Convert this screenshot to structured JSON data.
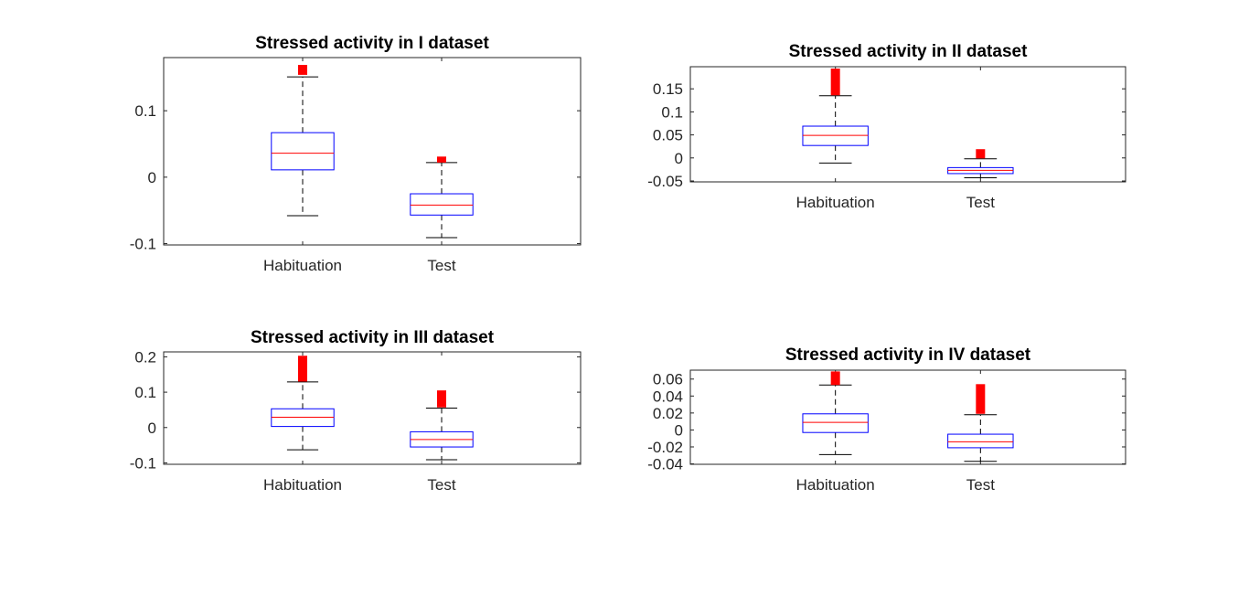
{
  "chart_data": [
    {
      "type": "box",
      "title": "Stressed activity in I dataset",
      "categories": [
        "Habituation",
        "Test"
      ],
      "ylim": [
        -0.102,
        0.18
      ],
      "yticks": [
        {
          "v": -0.1,
          "label": "-0.1"
        },
        {
          "v": 0,
          "label": "0"
        },
        {
          "v": 0.1,
          "label": "0.1"
        }
      ],
      "boxes": [
        {
          "whisker_low": -0.058,
          "q1": 0.011,
          "median": 0.036,
          "q3": 0.067,
          "whisker_high": 0.151,
          "outlier_range": [
            0.154,
            0.169
          ]
        },
        {
          "whisker_low": -0.091,
          "q1": -0.057,
          "median": -0.042,
          "q3": -0.025,
          "whisker_high": 0.022,
          "outlier_range": [
            0.022,
            0.031
          ]
        }
      ]
    },
    {
      "type": "box",
      "title": "Stressed activity in II dataset",
      "categories": [
        "Habituation",
        "Test"
      ],
      "ylim": [
        -0.052,
        0.198
      ],
      "yticks": [
        {
          "v": -0.05,
          "label": "-0.05"
        },
        {
          "v": 0,
          "label": "0"
        },
        {
          "v": 0.05,
          "label": "0.05"
        },
        {
          "v": 0.1,
          "label": "0.1"
        },
        {
          "v": 0.15,
          "label": "0.15"
        }
      ],
      "boxes": [
        {
          "whisker_low": -0.011,
          "q1": 0.027,
          "median": 0.049,
          "q3": 0.069,
          "whisker_high": 0.135,
          "outlier_range": [
            0.136,
            0.194
          ]
        },
        {
          "whisker_low": -0.043,
          "q1": -0.034,
          "median": -0.027,
          "q3": -0.021,
          "whisker_high": -0.002,
          "outlier_range": [
            -0.001,
            0.019
          ]
        }
      ]
    },
    {
      "type": "box",
      "title": "Stressed activity in III dataset",
      "categories": [
        "Habituation",
        "Test"
      ],
      "ylim": [
        -0.104,
        0.214
      ],
      "yticks": [
        {
          "v": -0.1,
          "label": "-0.1"
        },
        {
          "v": 0,
          "label": "0"
        },
        {
          "v": 0.1,
          "label": "0.1"
        },
        {
          "v": 0.2,
          "label": "0.2"
        }
      ],
      "boxes": [
        {
          "whisker_low": -0.063,
          "q1": 0.003,
          "median": 0.029,
          "q3": 0.053,
          "whisker_high": 0.129,
          "outlier_range": [
            0.13,
            0.203
          ]
        },
        {
          "whisker_low": -0.091,
          "q1": -0.055,
          "median": -0.034,
          "q3": -0.012,
          "whisker_high": 0.055,
          "outlier_range": [
            0.057,
            0.105
          ]
        }
      ]
    },
    {
      "type": "box",
      "title": "Stressed activity in IV dataset",
      "categories": [
        "Habituation",
        "Test"
      ],
      "ylim": [
        -0.0405,
        0.0705
      ],
      "yticks": [
        {
          "v": -0.04,
          "label": "-0.04"
        },
        {
          "v": -0.02,
          "label": "-0.02"
        },
        {
          "v": 0,
          "label": "0"
        },
        {
          "v": 0.02,
          "label": "0.02"
        },
        {
          "v": 0.04,
          "label": "0.04"
        },
        {
          "v": 0.06,
          "label": "0.06"
        }
      ],
      "boxes": [
        {
          "whisker_low": -0.029,
          "q1": -0.003,
          "median": 0.009,
          "q3": 0.019,
          "whisker_high": 0.053,
          "outlier_range": [
            0.053,
            0.069
          ]
        },
        {
          "whisker_low": -0.037,
          "q1": -0.021,
          "median": -0.014,
          "q3": -0.005,
          "whisker_high": 0.018,
          "outlier_range": [
            0.019,
            0.054
          ]
        }
      ]
    }
  ],
  "colors": {
    "box": "#0000ff",
    "median": "#ff0000",
    "outlier": "#ff0000",
    "whisker": "#000000",
    "axes": "#262626"
  }
}
